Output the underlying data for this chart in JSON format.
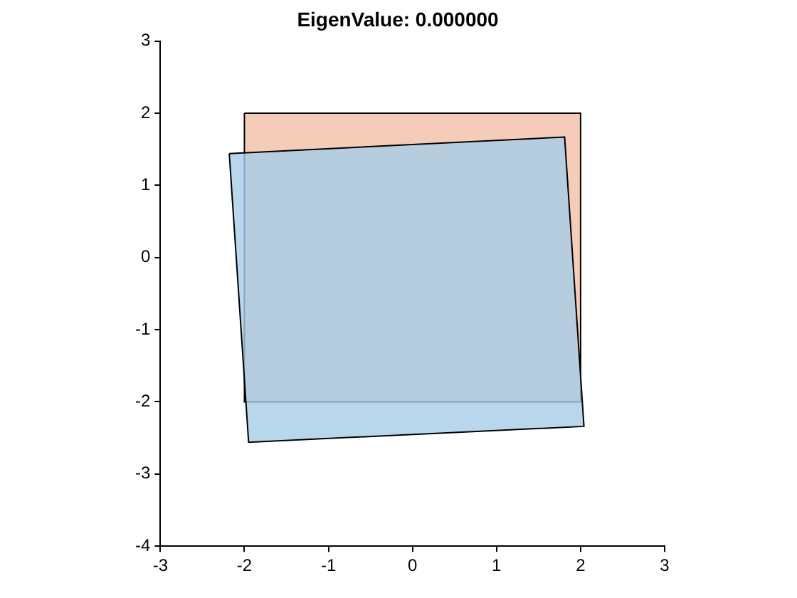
{
  "chart_data": {
    "type": "area",
    "title": "EigenValue: 0.000000",
    "series": [
      {
        "color": "#a6cde8",
        "x": [
          -2.18,
          1.81,
          2.04,
          -1.95,
          -2.18
        ],
        "values": [
          1.44,
          1.67,
          -2.34,
          -2.56,
          1.44
        ]
      },
      {
        "color": "#f2bfa6",
        "x": [
          -2,
          2,
          2,
          -2,
          -2
        ],
        "values": [
          2,
          2,
          -2,
          -2,
          2
        ]
      }
    ],
    "xlim": [
      -3,
      3
    ],
    "ylim": [
      -4,
      3
    ],
    "xticks": [
      -3,
      -2,
      -1,
      0,
      1,
      2,
      3
    ],
    "yticks": [
      -4,
      -3,
      -2,
      -1,
      0,
      1,
      2,
      3
    ],
    "grid": false,
    "legend": false,
    "marker": "none"
  }
}
